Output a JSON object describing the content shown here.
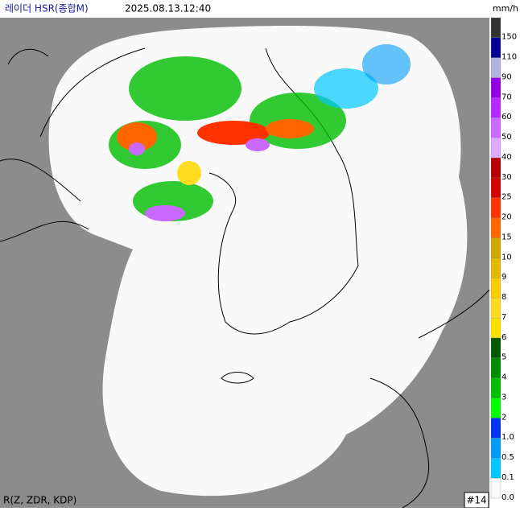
{
  "header": {
    "title": "레이더 HSR(종합M)",
    "timestamp": "2025.08.13.12:40",
    "unit": "mm/h"
  },
  "legend": {
    "items": [
      {
        "label": "150",
        "color": "#333333"
      },
      {
        "label": "110",
        "color": "#000390"
      },
      {
        "label": "90",
        "color": "#b3b4de"
      },
      {
        "label": "70",
        "color": "#9300e4"
      },
      {
        "label": "60",
        "color": "#b329ff"
      },
      {
        "label": "50",
        "color": "#c969ff"
      },
      {
        "label": "40",
        "color": "#dfa9ff"
      },
      {
        "label": "30",
        "color": "#b40000"
      },
      {
        "label": "25",
        "color": "#d20000"
      },
      {
        "label": "20",
        "color": "#ff3200"
      },
      {
        "label": "15",
        "color": "#ff6600"
      },
      {
        "label": "10",
        "color": "#ccaa00"
      },
      {
        "label": "9",
        "color": "#e0b900"
      },
      {
        "label": "8",
        "color": "#f9cd00"
      },
      {
        "label": "7",
        "color": "#ffdc1f"
      },
      {
        "label": "6",
        "color": "#ffe100"
      },
      {
        "label": "5",
        "color": "#005a00"
      },
      {
        "label": "4",
        "color": "#008c00"
      },
      {
        "label": "3",
        "color": "#00be00"
      },
      {
        "label": "2",
        "color": "#00ff00"
      },
      {
        "label": "1.0",
        "color": "#0033f5"
      },
      {
        "label": "0.5",
        "color": "#009bf5"
      },
      {
        "label": "0.1",
        "color": "#00c8ff"
      },
      {
        "label": "0.0",
        "color": "#fafafa"
      }
    ]
  },
  "footer": {
    "method": "R(Z, ZDR, KDP)",
    "frame": "#14"
  }
}
